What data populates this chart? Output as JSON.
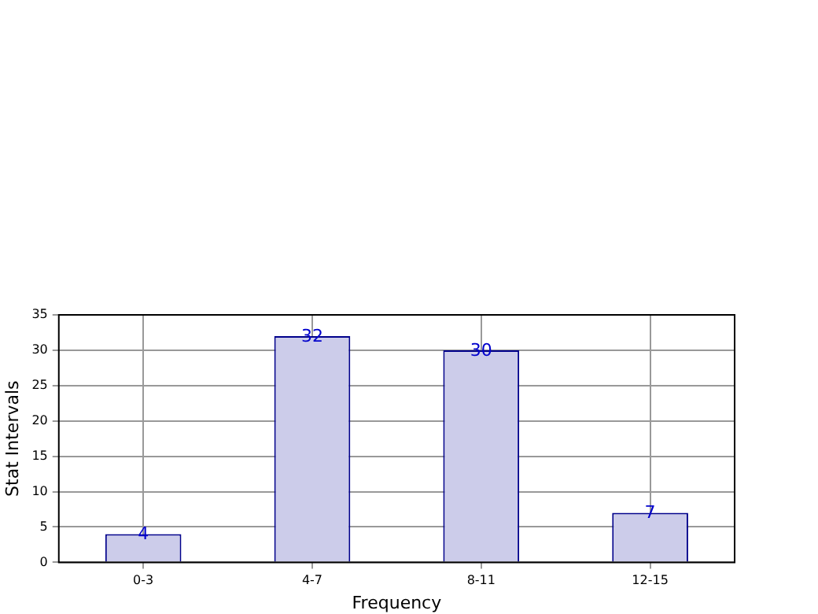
{
  "chart_data": {
    "type": "bar",
    "xlabel": "Frequency",
    "ylabel": "Stat Intervals",
    "categories": [
      "0-3",
      "4-7",
      "8-11",
      "12-15"
    ],
    "values": [
      4,
      32,
      30,
      7
    ],
    "color": "#ccccea",
    "ylim": [
      0,
      35
    ],
    "yticks": [
      0,
      5,
      10,
      15,
      20,
      25,
      30,
      35
    ],
    "grid": true,
    "data_labels": true
  }
}
